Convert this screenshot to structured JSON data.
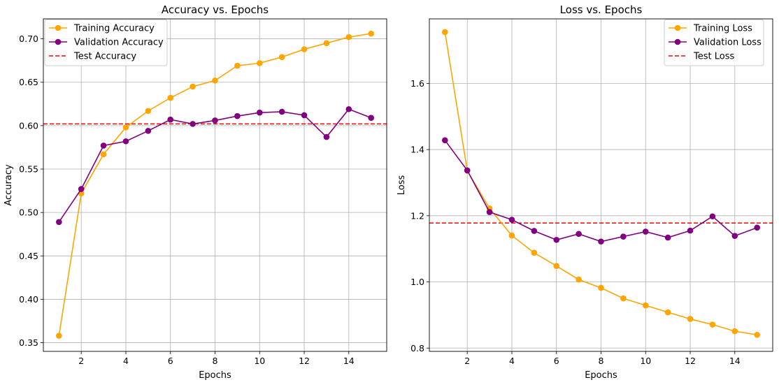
{
  "chart_data": [
    {
      "type": "line",
      "title": "Accuracy vs. Epochs",
      "xlabel": "Epochs",
      "ylabel": "Accuracy",
      "xlim": [
        0.3,
        15.7
      ],
      "ylim": [
        0.34,
        0.723
      ],
      "xticks": [
        2,
        4,
        6,
        8,
        10,
        12,
        14
      ],
      "xtick_labels": [
        "2",
        "4",
        "6",
        "8",
        "10",
        "12",
        "14"
      ],
      "yticks": [
        0.35,
        0.4,
        0.45,
        0.5,
        0.55,
        0.6,
        0.65,
        0.7
      ],
      "ytick_labels": [
        "0.35",
        "0.40",
        "0.45",
        "0.50",
        "0.55",
        "0.60",
        "0.65",
        "0.70"
      ],
      "grid": true,
      "legend_position": "top-left",
      "x": [
        1,
        2,
        3,
        4,
        5,
        6,
        7,
        8,
        9,
        10,
        11,
        12,
        13,
        14,
        15
      ],
      "series": [
        {
          "name": "Training Accuracy",
          "color": "#FFA500",
          "style": "solid-marker",
          "values": [
            0.358,
            0.522,
            0.567,
            0.598,
            0.617,
            0.632,
            0.645,
            0.652,
            0.669,
            0.672,
            0.679,
            0.688,
            0.695,
            0.702,
            0.706
          ]
        },
        {
          "name": "Validation Accuracy",
          "color": "#800080",
          "style": "solid-marker",
          "values": [
            0.489,
            0.527,
            0.577,
            0.582,
            0.594,
            0.607,
            0.602,
            0.606,
            0.611,
            0.615,
            0.616,
            0.612,
            0.587,
            0.619,
            0.609
          ]
        }
      ],
      "hlines": [
        {
          "name": "Test Accuracy",
          "color": "#FF0000",
          "style": "dashed",
          "value": 0.602
        }
      ]
    },
    {
      "type": "line",
      "title": "Loss vs. Epochs",
      "xlabel": "Epochs",
      "ylabel": "Loss",
      "xlim": [
        0.3,
        15.7
      ],
      "ylim": [
        0.79,
        1.795
      ],
      "xticks": [
        2,
        4,
        6,
        8,
        10,
        12,
        14
      ],
      "xtick_labels": [
        "2",
        "4",
        "6",
        "8",
        "10",
        "12",
        "14"
      ],
      "yticks": [
        0.8,
        1.0,
        1.2,
        1.4,
        1.6
      ],
      "ytick_labels": [
        "0.8",
        "1.0",
        "1.2",
        "1.4",
        "1.6"
      ],
      "grid": true,
      "legend_position": "top-right",
      "x": [
        1,
        2,
        3,
        4,
        5,
        6,
        7,
        8,
        9,
        10,
        11,
        12,
        13,
        14,
        15
      ],
      "series": [
        {
          "name": "Training Loss",
          "color": "#FFA500",
          "style": "solid-marker",
          "values": [
            1.755,
            1.336,
            1.222,
            1.14,
            1.088,
            1.048,
            1.007,
            0.982,
            0.95,
            0.929,
            0.908,
            0.888,
            0.871,
            0.851,
            0.84
          ]
        },
        {
          "name": "Validation Loss",
          "color": "#800080",
          "style": "solid-marker",
          "values": [
            1.428,
            1.337,
            1.211,
            1.188,
            1.154,
            1.127,
            1.145,
            1.122,
            1.137,
            1.152,
            1.134,
            1.155,
            1.198,
            1.139,
            1.164
          ]
        }
      ],
      "hlines": [
        {
          "name": "Test Loss",
          "color": "#FF0000",
          "style": "dashed",
          "value": 1.178
        }
      ]
    }
  ]
}
